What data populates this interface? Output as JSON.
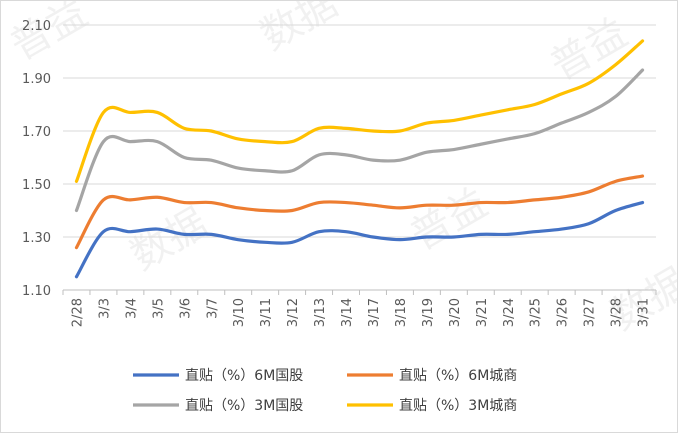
{
  "chart_data": {
    "type": "line",
    "title": "",
    "xlabel": "",
    "ylabel": "",
    "categories": [
      "2/28",
      "3/3",
      "3/4",
      "3/5",
      "3/6",
      "3/7",
      "3/10",
      "3/11",
      "3/12",
      "3/13",
      "3/14",
      "3/17",
      "3/18",
      "3/19",
      "3/20",
      "3/21",
      "3/24",
      "3/25",
      "3/26",
      "3/27",
      "3/28",
      "3/31"
    ],
    "ylim": [
      1.1,
      2.1
    ],
    "yticks": [
      "1.10",
      "1.30",
      "1.50",
      "1.70",
      "1.90",
      "2.10"
    ],
    "grid": true,
    "legend_position": "bottom",
    "series": [
      {
        "name": "直贴（%）6M国股",
        "color": "#4472C4",
        "values": [
          1.15,
          1.32,
          1.32,
          1.33,
          1.31,
          1.31,
          1.29,
          1.28,
          1.28,
          1.32,
          1.32,
          1.3,
          1.29,
          1.3,
          1.3,
          1.31,
          1.31,
          1.32,
          1.33,
          1.35,
          1.4,
          1.43
        ]
      },
      {
        "name": "直贴（%）6M城商",
        "color": "#ED7D31",
        "values": [
          1.26,
          1.44,
          1.44,
          1.45,
          1.43,
          1.43,
          1.41,
          1.4,
          1.4,
          1.43,
          1.43,
          1.42,
          1.41,
          1.42,
          1.42,
          1.43,
          1.43,
          1.44,
          1.45,
          1.47,
          1.51,
          1.53
        ]
      },
      {
        "name": "直贴（%）3M国股",
        "color": "#A5A5A5",
        "values": [
          1.4,
          1.66,
          1.66,
          1.66,
          1.6,
          1.59,
          1.56,
          1.55,
          1.55,
          1.61,
          1.61,
          1.59,
          1.59,
          1.62,
          1.63,
          1.65,
          1.67,
          1.69,
          1.73,
          1.77,
          1.83,
          1.93
        ]
      },
      {
        "name": "直贴（%）3M城商",
        "color": "#FFC000",
        "values": [
          1.51,
          1.77,
          1.77,
          1.77,
          1.71,
          1.7,
          1.67,
          1.66,
          1.66,
          1.71,
          1.71,
          1.7,
          1.7,
          1.73,
          1.74,
          1.76,
          1.78,
          1.8,
          1.84,
          1.88,
          1.95,
          2.04
        ]
      }
    ],
    "watermark": [
      "普益",
      "数据",
      "普益",
      "数据",
      "普益",
      "数据"
    ]
  }
}
